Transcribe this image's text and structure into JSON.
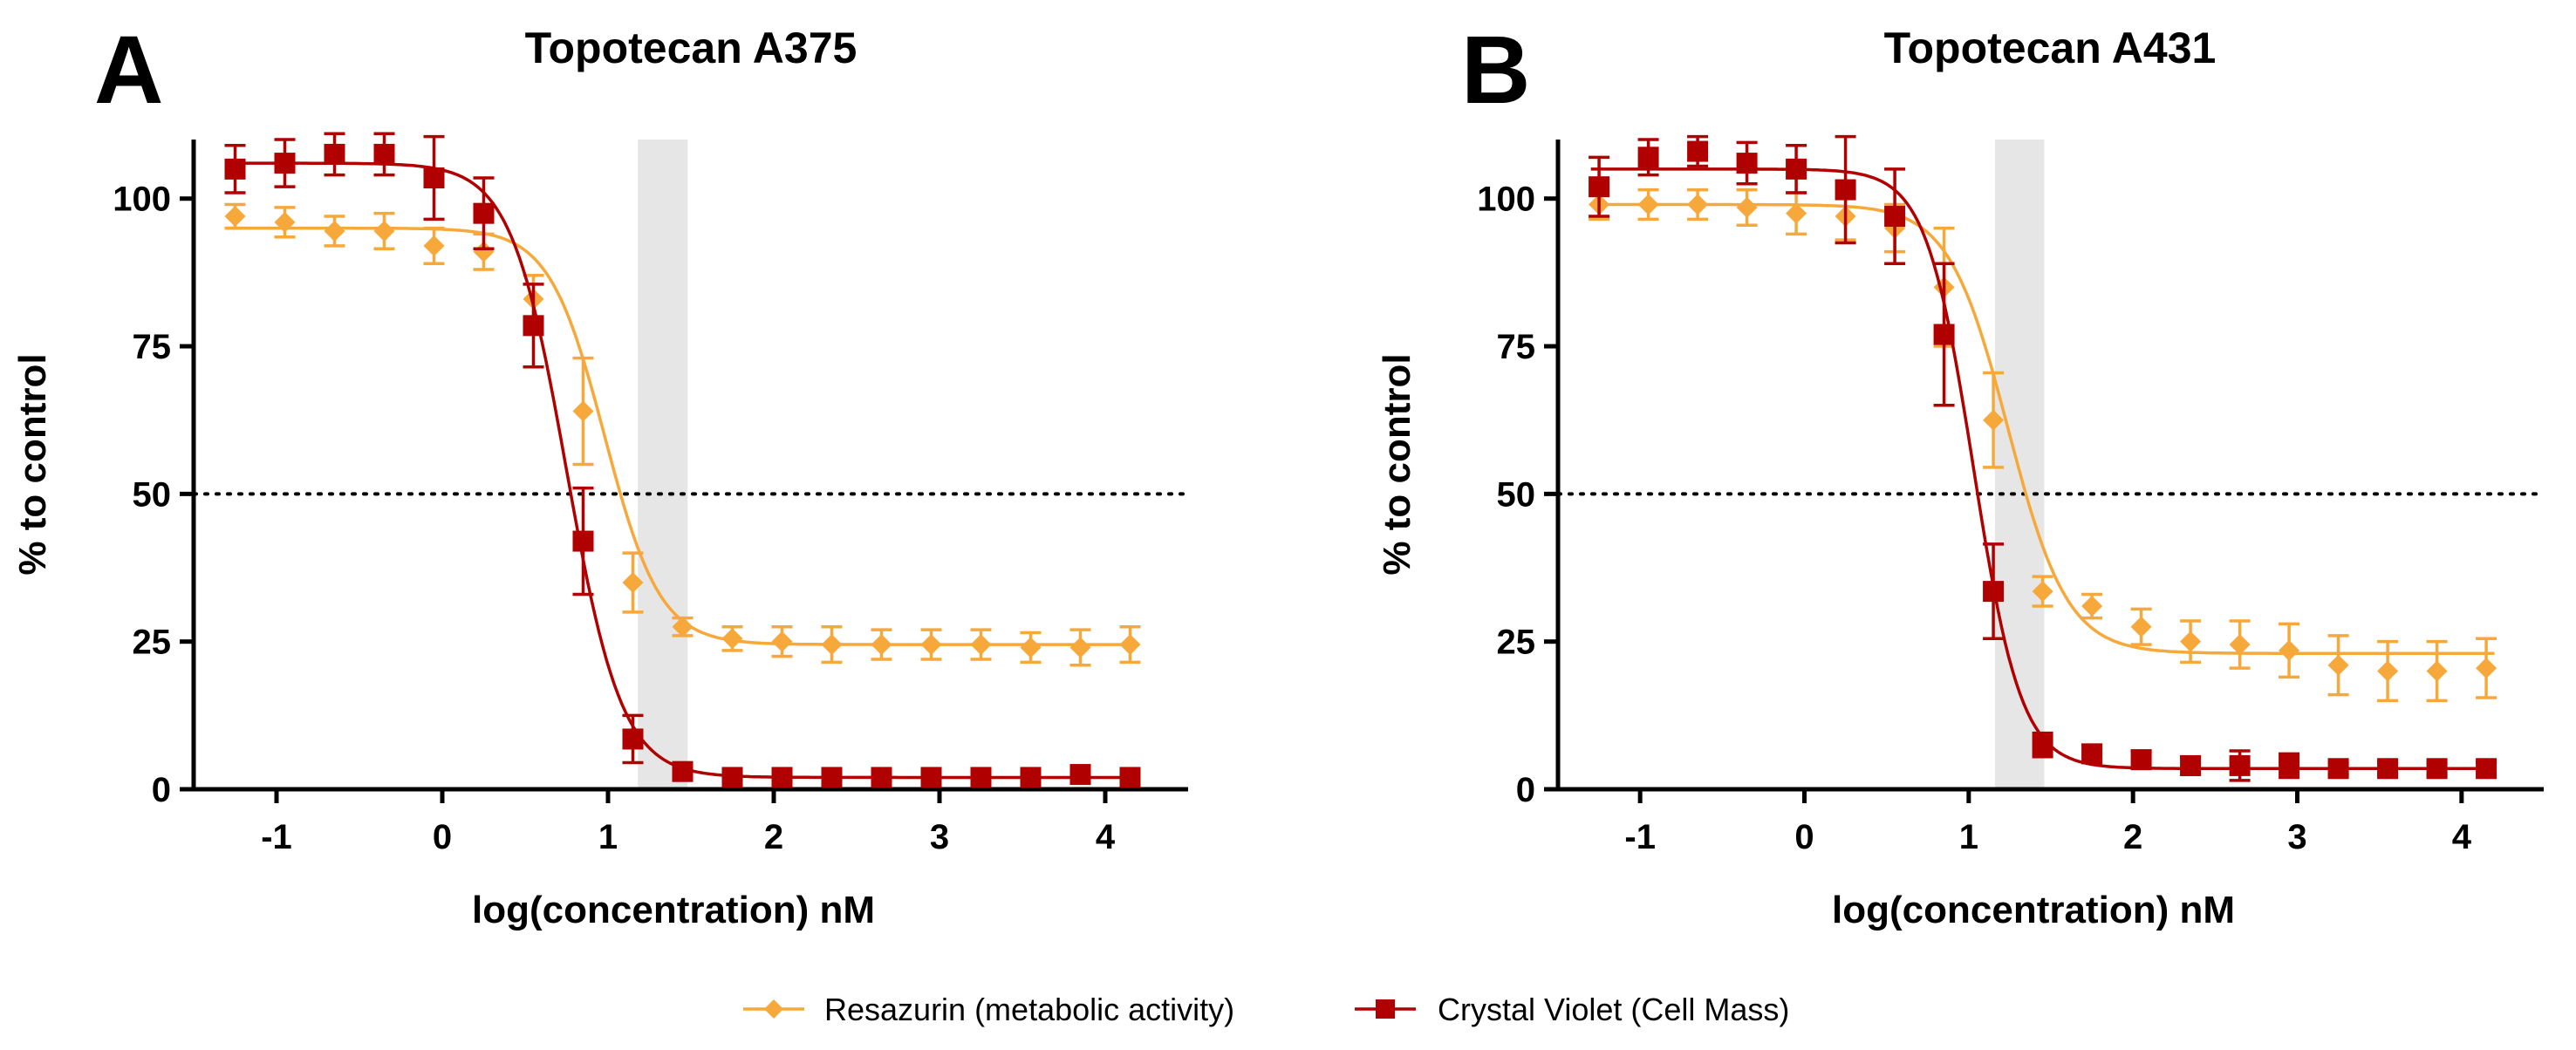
{
  "colors": {
    "resazurin": "#f7a83b",
    "crystal_violet": "#b00000",
    "shade": "#e6e6e6"
  },
  "legend": {
    "resazurin": "Resazurin (metabolic activity)",
    "crystal_violet": "Crystal Violet (Cell Mass)"
  },
  "chart_data": [
    {
      "panel": "A",
      "type": "scatter",
      "title": "Topotecan A375",
      "xlabel": "log(concentration) nM",
      "ylabel": "% to control",
      "xlim": [
        -1.5,
        4.5
      ],
      "ylim": [
        0,
        110
      ],
      "xticks": [
        -1,
        0,
        1,
        2,
        3,
        4
      ],
      "xtick_labels": [
        "-1",
        "0",
        "1",
        "2",
        "3",
        "4"
      ],
      "yticks": [
        0,
        25,
        50,
        75,
        100
      ],
      "ytick_labels": [
        "0",
        "25",
        "50",
        "75",
        "100"
      ],
      "reference_line_y": 50,
      "shaded_band_x": [
        1.18,
        1.48
      ],
      "series": [
        {
          "name": "Resazurin (metabolic activity)",
          "marker": "diamond",
          "x": [
            -1.25,
            -0.95,
            -0.65,
            -0.35,
            -0.05,
            0.25,
            0.55,
            0.85,
            1.15,
            1.45,
            1.75,
            2.05,
            2.35,
            2.65,
            2.95,
            3.25,
            3.55,
            3.85,
            4.15
          ],
          "y": [
            97,
            96,
            94.5,
            94.5,
            92,
            91,
            83,
            64,
            35,
            27.5,
            25.5,
            25,
            24.5,
            24.5,
            24.5,
            24.5,
            24,
            24,
            24.5
          ],
          "err": [
            2,
            2.5,
            2.5,
            3,
            3,
            3,
            4,
            9,
            5,
            1.5,
            2,
            2.5,
            3,
            2.5,
            2.5,
            2.5,
            2.5,
            3,
            3
          ],
          "fit": {
            "bottom": 24.5,
            "top": 95,
            "logIC50": 0.98,
            "hill": 2.6
          }
        },
        {
          "name": "Crystal Violet (Cell Mass)",
          "marker": "square",
          "x": [
            -1.25,
            -0.95,
            -0.65,
            -0.35,
            -0.05,
            0.25,
            0.55,
            0.85,
            1.15,
            1.45,
            1.75,
            2.05,
            2.35,
            2.65,
            2.95,
            3.25,
            3.55,
            3.85,
            4.15
          ],
          "y": [
            105,
            106,
            107.5,
            107.5,
            103.5,
            97.5,
            78.5,
            42,
            8.5,
            3,
            2,
            2,
            2,
            2,
            2,
            2,
            2,
            2.5,
            2
          ],
          "err": [
            4,
            4,
            3.5,
            3.5,
            7,
            6,
            7,
            9,
            4,
            1,
            1,
            1,
            1,
            1,
            1,
            1,
            1,
            1,
            1
          ],
          "fit": {
            "bottom": 2,
            "top": 106,
            "logIC50": 0.75,
            "hill": 2.6
          }
        }
      ]
    },
    {
      "panel": "B",
      "type": "scatter",
      "title": "Topotecan A431",
      "xlabel": "log(concentration) nM",
      "ylabel": "% to control",
      "xlim": [
        -1.5,
        4.5
      ],
      "ylim": [
        0,
        110
      ],
      "xticks": [
        -1,
        0,
        1,
        2,
        3,
        4
      ],
      "xtick_labels": [
        "-1",
        "0",
        "1",
        "2",
        "3",
        "4"
      ],
      "yticks": [
        0,
        25,
        50,
        75,
        100
      ],
      "ytick_labels": [
        "0",
        "25",
        "50",
        "75",
        "100"
      ],
      "reference_line_y": 50,
      "shaded_band_x": [
        1.16,
        1.46
      ],
      "series": [
        {
          "name": "Resazurin (metabolic activity)",
          "marker": "diamond",
          "x": [
            -1.25,
            -0.95,
            -0.65,
            -0.35,
            -0.05,
            0.25,
            0.55,
            0.85,
            1.15,
            1.45,
            1.75,
            2.05,
            2.35,
            2.65,
            2.95,
            3.25,
            3.55,
            3.85,
            4.15
          ],
          "y": [
            99,
            99,
            99,
            98.5,
            97.5,
            97,
            95,
            85,
            62.5,
            33.5,
            31,
            27.5,
            25,
            24.5,
            23.5,
            21,
            20,
            20,
            20.5
          ],
          "err": [
            2.5,
            2.5,
            2.5,
            3,
            3.5,
            4,
            4,
            10,
            8,
            2.5,
            2,
            3,
            3.5,
            4,
            4.5,
            5,
            5,
            5,
            5
          ],
          "fit": {
            "bottom": 23,
            "top": 99,
            "logIC50": 1.24,
            "hill": 2.4
          }
        },
        {
          "name": "Crystal Violet (Cell Mass)",
          "marker": "square",
          "x": [
            -1.25,
            -0.95,
            -0.65,
            -0.35,
            -0.05,
            0.25,
            0.55,
            0.85,
            1.15,
            1.45,
            1.75,
            2.05,
            2.35,
            2.65,
            2.95,
            3.25,
            3.55,
            3.85,
            4.15
          ],
          "y": [
            102,
            107,
            108,
            106,
            105,
            101.5,
            97,
            77,
            33.5,
            7.5,
            6,
            5,
            4,
            4,
            4,
            3.5,
            3.5,
            3.5,
            3.5
          ],
          "err": [
            5,
            3,
            2.5,
            3.5,
            4,
            9,
            8,
            12,
            8,
            2,
            1.5,
            1.5,
            1.5,
            2.5,
            2,
            1,
            1,
            1,
            1
          ],
          "fit": {
            "bottom": 3.5,
            "top": 105,
            "logIC50": 1.03,
            "hill": 3.0
          }
        }
      ]
    }
  ]
}
